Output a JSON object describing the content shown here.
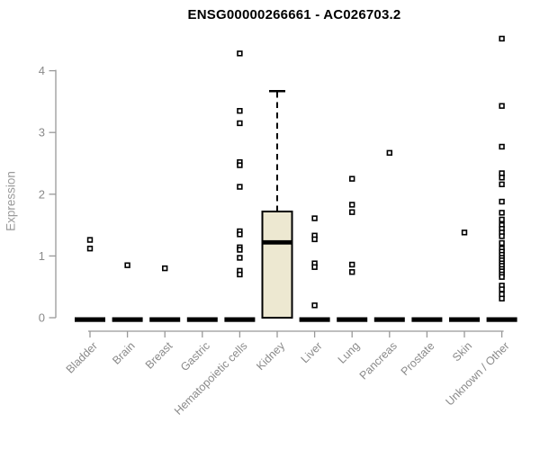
{
  "chart_data": {
    "type": "boxplot",
    "title": "ENSG00000266661 - AC026703.2",
    "ylabel": "Expression",
    "xlabel": "",
    "ylim": [
      0,
      4.6
    ],
    "yticks": [
      0,
      1,
      2,
      3,
      4
    ],
    "grid": false,
    "legend": "none",
    "categories": [
      "Bladder",
      "Brain",
      "Breast",
      "Gastric",
      "Hematopoietic cells",
      "Kidney",
      "Liver",
      "Lung",
      "Pancreas",
      "Prostate",
      "Skin",
      "Unknown / Other"
    ],
    "boxes": [
      {
        "name": "Bladder",
        "q1": 0,
        "median": 0,
        "q3": 0,
        "whisker_low": 0,
        "whisker_high": 0,
        "outliers": [
          1.26,
          1.12
        ]
      },
      {
        "name": "Brain",
        "q1": 0,
        "median": 0,
        "q3": 0,
        "whisker_low": 0,
        "whisker_high": 0,
        "outliers": [
          0.85
        ]
      },
      {
        "name": "Breast",
        "q1": 0,
        "median": 0,
        "q3": 0,
        "whisker_low": 0,
        "whisker_high": 0,
        "outliers": [
          0.8
        ]
      },
      {
        "name": "Gastric",
        "q1": 0,
        "median": 0,
        "q3": 0,
        "whisker_low": 0,
        "whisker_high": 0,
        "outliers": []
      },
      {
        "name": "Hematopoietic cells",
        "q1": 0,
        "median": 0,
        "q3": 0,
        "whisker_low": 0,
        "whisker_high": 0,
        "outliers": [
          4.28,
          3.35,
          3.15,
          2.52,
          2.47,
          2.12,
          1.4,
          1.35,
          1.14,
          1.1,
          0.97,
          0.76,
          0.7
        ]
      },
      {
        "name": "Kidney",
        "q1": 0,
        "median": 1.22,
        "q3": 1.72,
        "whisker_low": 0,
        "whisker_high": 3.67,
        "outliers": []
      },
      {
        "name": "Liver",
        "q1": 0,
        "median": 0,
        "q3": 0,
        "whisker_low": 0,
        "whisker_high": 0,
        "outliers": [
          1.61,
          1.33,
          1.27,
          0.88,
          0.82,
          0.2
        ]
      },
      {
        "name": "Lung",
        "q1": 0,
        "median": 0,
        "q3": 0,
        "whisker_low": 0,
        "whisker_high": 0,
        "outliers": [
          2.25,
          1.83,
          1.71,
          0.86,
          0.74
        ]
      },
      {
        "name": "Pancreas",
        "q1": 0,
        "median": 0,
        "q3": 0,
        "whisker_low": 0,
        "whisker_high": 0,
        "outliers": [
          2.67
        ]
      },
      {
        "name": "Prostate",
        "q1": 0,
        "median": 0,
        "q3": 0,
        "whisker_low": 0,
        "whisker_high": 0,
        "outliers": []
      },
      {
        "name": "Skin",
        "q1": 0,
        "median": 0,
        "q3": 0,
        "whisker_low": 0,
        "whisker_high": 0,
        "outliers": [
          1.38
        ]
      },
      {
        "name": "Unknown / Other",
        "q1": 0,
        "median": 0,
        "q3": 0,
        "whisker_low": 0,
        "whisker_high": 0,
        "outliers": [
          4.52,
          3.43,
          2.77,
          2.34,
          2.27,
          2.16,
          1.88,
          1.7,
          1.59,
          1.5,
          1.44,
          1.38,
          1.32,
          1.21,
          1.12,
          1.07,
          1.02,
          0.97,
          0.93,
          0.88,
          0.84,
          0.79,
          0.75,
          0.7,
          0.66,
          0.52,
          0.46,
          0.38,
          0.31
        ]
      }
    ],
    "colors": {
      "title": "#000000",
      "axis_line": "#999999",
      "tick_label": "#8a8a8a",
      "category_label": "#8a8a8a",
      "box_fill": "#ede8d1",
      "box_border": "#000000",
      "median": "#000000",
      "whisker": "#000000",
      "outlier": "#000000",
      "zero_bar": "#000000"
    }
  }
}
